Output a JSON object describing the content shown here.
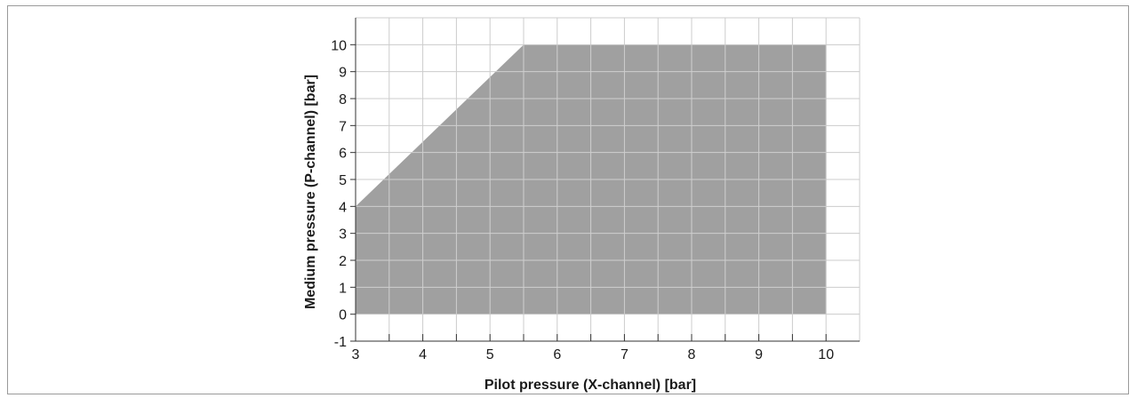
{
  "chart_data": {
    "type": "area",
    "title": "",
    "xlabel": "Pilot pressure (X-channel) [bar]",
    "ylabel": "Medium pressure (P-channel) [bar]",
    "xlim": [
      3,
      10.5
    ],
    "ylim": [
      -1,
      11
    ],
    "x_ticks": [
      3,
      4,
      5,
      6,
      7,
      8,
      9,
      10
    ],
    "x_minor_ticks": [
      3.5,
      4.5,
      5.5,
      6.5,
      7.5,
      8.5,
      9.5
    ],
    "y_ticks": [
      -1,
      0,
      1,
      2,
      3,
      4,
      5,
      6,
      7,
      8,
      9,
      10
    ],
    "grid": true,
    "grid_step_x": 0.5,
    "grid_step_y": 1,
    "region": {
      "polygon": [
        [
          3,
          0
        ],
        [
          3,
          4
        ],
        [
          5.5,
          10
        ],
        [
          10,
          10
        ],
        [
          10,
          0
        ]
      ],
      "fill_color": "#a0a0a0"
    },
    "colors": {
      "grid": "#cccccc",
      "axis": "#333333",
      "frame": "#9a9a9a"
    }
  }
}
